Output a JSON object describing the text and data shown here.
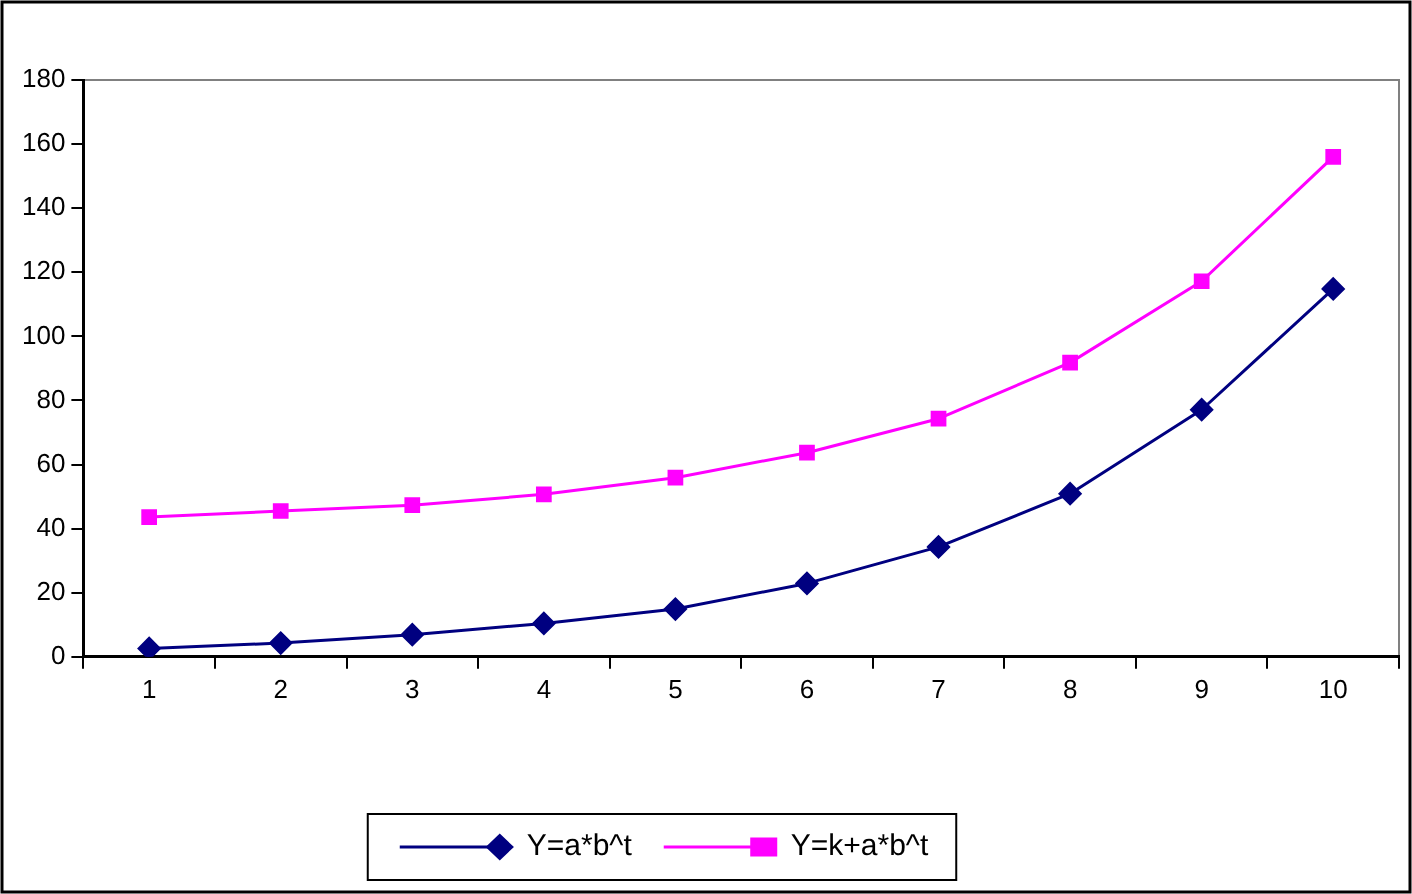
{
  "chart_data": {
    "type": "line",
    "categories": [
      "1",
      "2",
      "3",
      "4",
      "5",
      "6",
      "7",
      "8",
      "9",
      "10"
    ],
    "series": [
      {
        "name": "Y=a*b^t",
        "color": "#000080",
        "marker": "diamond",
        "values": [
          2.6,
          4.3,
          6.9,
          10.4,
          14.9,
          22.9,
          34.3,
          50.9,
          77.1,
          114.8
        ]
      },
      {
        "name": "Y=k+a*b^t",
        "color": "#ff00ff",
        "marker": "square",
        "values": [
          43.6,
          45.5,
          47.3,
          50.7,
          55.9,
          63.7,
          74.3,
          91.8,
          117.2,
          156
        ]
      }
    ],
    "ylim": [
      0,
      180
    ],
    "yticks": [
      0,
      20,
      40,
      60,
      80,
      100,
      120,
      140,
      160,
      180
    ],
    "grid": false,
    "legend": "bottom",
    "line_style": "solid"
  }
}
